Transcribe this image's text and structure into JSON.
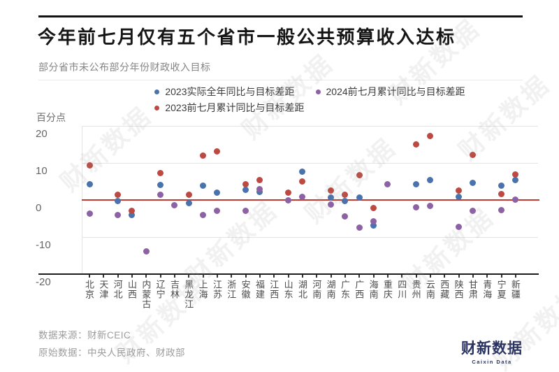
{
  "header": {
    "title": "今年前七月仅有五个省市一般公共预算收入达标",
    "subtitle": "部分省市未公布部分年份财政收入目标"
  },
  "legend": [
    {
      "label": "2023实际全年同比与目标差距",
      "color": "#4a73ad",
      "row": 1
    },
    {
      "label": "2024前七月累计同比与目标差距",
      "color": "#8d62a5",
      "row": 1
    },
    {
      "label": "2023前七月累计同比与目标差距",
      "color": "#bc4a42",
      "row": 2
    }
  ],
  "axis": {
    "unit_label": "百分点",
    "y_ticks": [
      20,
      10,
      0,
      -10,
      -20
    ],
    "gridlines": [
      20,
      10,
      -10
    ],
    "zero_line_color": "#c23a30"
  },
  "chart_data": {
    "type": "scatter",
    "title": "今年前七月仅有五个省市一般公共预算收入达标",
    "ylabel": "百分点",
    "ylim": [
      -20,
      20
    ],
    "grid": "horizontal",
    "legend_position": "top-center",
    "categories": [
      "北京",
      "天津",
      "河北",
      "山西",
      "内蒙古",
      "辽宁",
      "吉林",
      "黑龙江",
      "上海",
      "江苏",
      "浙江",
      "安徽",
      "福建",
      "江西",
      "山东",
      "湖北",
      "河南",
      "湖南",
      "广东",
      "广西",
      "海南",
      "重庆",
      "四川",
      "贵州",
      "云南",
      "西藏",
      "陕西",
      "甘肃",
      "青海",
      "宁夏",
      "新疆"
    ],
    "series": [
      {
        "name": "2023实际全年同比与目标差距",
        "color": "#4a73ad",
        "values": [
          4.1,
          null,
          -0.3,
          -4.2,
          null,
          4.0,
          null,
          -0.9,
          3.8,
          1.8,
          null,
          2.6,
          2.0,
          null,
          null,
          7.5,
          null,
          0.5,
          -0.4,
          0.6,
          -6.9,
          null,
          null,
          4.2,
          5.3,
          null,
          0.8,
          4.5,
          null,
          3.7,
          5.3
        ]
      },
      {
        "name": "2024前七月累计同比与目标差距",
        "color": "#8d62a5",
        "values": [
          -3.8,
          null,
          -4.2,
          null,
          -13.9,
          1.3,
          -1.6,
          null,
          -4.2,
          -3.1,
          null,
          -3.1,
          2.8,
          null,
          -0.1,
          0.8,
          null,
          -1.3,
          -4.5,
          -7.6,
          -5.9,
          4.2,
          null,
          -2.0,
          -1.7,
          null,
          -7.4,
          -3.1,
          null,
          -2.8,
          0.0
        ]
      },
      {
        "name": "2023前七月累计同比与目标差距",
        "color": "#bc4a42",
        "values": [
          9.2,
          null,
          1.4,
          -3.0,
          null,
          7.1,
          null,
          1.3,
          11.8,
          13.1,
          null,
          4.1,
          5.3,
          null,
          1.8,
          5.0,
          null,
          2.4,
          1.4,
          6.6,
          -2.3,
          null,
          null,
          14.9,
          17.2,
          null,
          2.5,
          12.1,
          null,
          1.6,
          6.8
        ]
      }
    ]
  },
  "footer": {
    "source_line": "数据来源：财新CEIC",
    "raw_data_line": "原始数据：中央人民政府、财政部"
  },
  "logo": {
    "cn": "财新数据",
    "en": "Caixin Data"
  },
  "watermark": "财新数据"
}
